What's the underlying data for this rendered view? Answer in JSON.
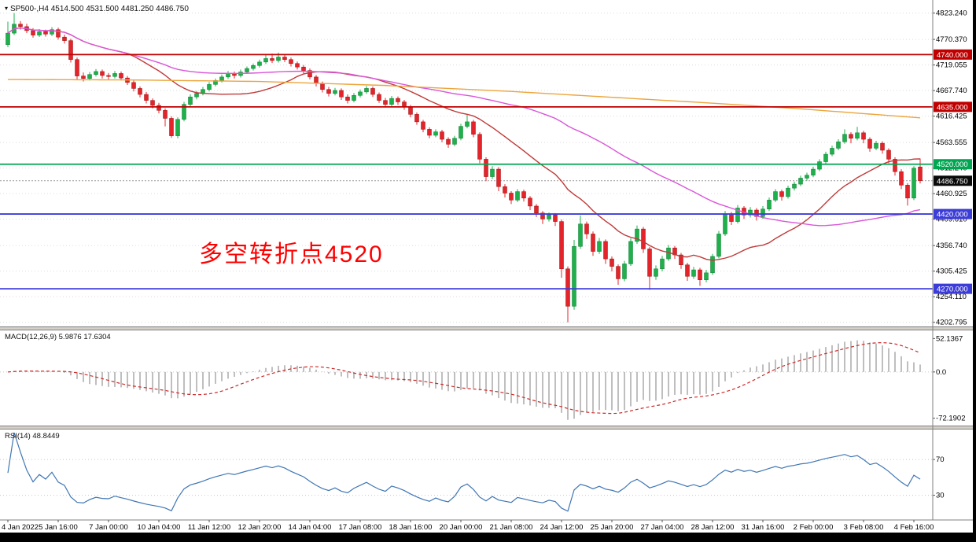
{
  "title": {
    "symbol_period": "SP500-,H4",
    "ohlc": "4514.500 4531.500 4481.250 4486.750",
    "dropdown_icon": "▾"
  },
  "annotation": {
    "text": "多空转折点4520",
    "color": "#fe0000"
  },
  "indicators": {
    "macd_label": "MACD(12,26,9)",
    "macd_values": "5.9876 17.6304",
    "rsi_label": "RSI(14)",
    "rsi_values": "48.8449"
  },
  "colors": {
    "bull": "#1eb14b",
    "bull_border": "#0e7a33",
    "bear": "#e3242b",
    "bear_border": "#9b1111",
    "ma_fast": "#c03a3a",
    "ma_medium": "#d957d9",
    "ma_slow": "#eca53c",
    "hline_red": "#c00000",
    "hline_green": "#00a651",
    "hline_blue": "#3c3cd9",
    "grid": "#dcdcdc",
    "axis_text": "#000000",
    "macd_hist": "#bfbfbf",
    "macd_signal": "#cc2a2a",
    "rsi_line": "#3f76b4",
    "current_line": "#9a9a9a",
    "current_badge_bg": "#0a0a0a"
  },
  "chart_data": [
    {
      "type": "candlestick",
      "symbol": "SP500-",
      "timeframe": "H4",
      "last_bar": {
        "open": 4514.5,
        "high": 4531.5,
        "low": 4481.25,
        "close": 4486.75
      },
      "y_axis_ticks": [
        4823.24,
        4770.37,
        4719.055,
        4667.74,
        4616.425,
        4563.555,
        4512.24,
        4460.925,
        4409.61,
        4356.74,
        4305.425,
        4254.11,
        4202.795
      ],
      "price_range": [
        4196,
        4840
      ],
      "hlines": [
        {
          "value": 4740.0,
          "label": "4740.000",
          "color_key": "hline_red"
        },
        {
          "value": 4635.0,
          "label": "4635.000",
          "color_key": "hline_red"
        },
        {
          "value": 4520.0,
          "label": "4520.000",
          "color_key": "hline_green"
        },
        {
          "value": 4420.0,
          "label": "4420.000",
          "color_key": "hline_blue"
        },
        {
          "value": 4270.0,
          "label": "4270.000",
          "color_key": "hline_blue"
        }
      ],
      "current_price": {
        "value": 4486.75,
        "label": "4486.750"
      },
      "x_axis_labels": [
        "4 Jan 2022",
        "5 Jan 16:00",
        "7 Jan 00:00",
        "10 Jan 04:00",
        "11 Jan 12:00",
        "12 Jan 20:00",
        "14 Jan 04:00",
        "17 Jan 08:00",
        "18 Jan 16:00",
        "20 Jan 00:00",
        "21 Jan 08:00",
        "24 Jan 12:00",
        "25 Jan 20:00",
        "27 Jan 04:00",
        "28 Jan 12:00",
        "31 Jan 16:00",
        "2 Feb 00:00",
        "3 Feb 08:00",
        "4 Feb 16:00"
      ],
      "label_every": 8,
      "moving_averages": [
        {
          "name": "fast",
          "type": "sma",
          "period": 20,
          "color_key": "ma_fast"
        },
        {
          "name": "medium",
          "type": "sma",
          "period": 55,
          "color_key": "ma_medium"
        },
        {
          "name": "slow",
          "color_key": "ma_slow",
          "points": [
            [
              0,
              4690
            ],
            [
              20,
              4689
            ],
            [
              40,
              4686
            ],
            [
              60,
              4678
            ],
            [
              80,
              4666
            ],
            [
              95,
              4655
            ],
            [
              110,
              4644
            ],
            [
              125,
              4632
            ],
            [
              145,
              4613
            ]
          ]
        }
      ],
      "candles": [
        [
          4760,
          4806,
          4755,
          4783
        ],
        [
          4783,
          4823.2,
          4779,
          4801
        ],
        [
          4801,
          4807,
          4790,
          4796
        ],
        [
          4796,
          4802,
          4783,
          4788
        ],
        [
          4788,
          4793,
          4774,
          4779
        ],
        [
          4779,
          4791,
          4775,
          4786
        ],
        [
          4786,
          4790,
          4776,
          4781
        ],
        [
          4781,
          4795,
          4777,
          4790
        ],
        [
          4790,
          4794,
          4770,
          4775
        ],
        [
          4775,
          4780,
          4762,
          4768
        ],
        [
          4768,
          4772,
          4724,
          4730
        ],
        [
          4730,
          4734,
          4690,
          4697
        ],
        [
          4697,
          4704,
          4686,
          4692
        ],
        [
          4692,
          4705,
          4688,
          4700
        ],
        [
          4700,
          4711,
          4696,
          4706
        ],
        [
          4706,
          4710,
          4692,
          4698
        ],
        [
          4698,
          4703,
          4690,
          4696
        ],
        [
          4696,
          4707,
          4692,
          4702
        ],
        [
          4702,
          4706,
          4688,
          4693
        ],
        [
          4693,
          4697,
          4679,
          4684
        ],
        [
          4684,
          4688,
          4666,
          4672
        ],
        [
          4672,
          4676,
          4654,
          4660
        ],
        [
          4660,
          4665,
          4642,
          4648
        ],
        [
          4648,
          4652,
          4632,
          4638
        ],
        [
          4638,
          4643,
          4622,
          4628
        ],
        [
          4628,
          4632,
          4596,
          4612
        ],
        [
          4612,
          4616,
          4573,
          4577
        ],
        [
          4577,
          4614,
          4572,
          4610
        ],
        [
          4610,
          4645,
          4606,
          4640
        ],
        [
          4640,
          4660,
          4636,
          4655
        ],
        [
          4655,
          4667,
          4650,
          4662
        ],
        [
          4662,
          4675,
          4658,
          4670
        ],
        [
          4670,
          4685,
          4666,
          4680
        ],
        [
          4680,
          4692,
          4676,
          4688
        ],
        [
          4688,
          4700,
          4684,
          4695
        ],
        [
          4695,
          4707,
          4691,
          4702
        ],
        [
          4702,
          4706,
          4692,
          4698
        ],
        [
          4698,
          4710,
          4694,
          4705
        ],
        [
          4705,
          4716,
          4701,
          4712
        ],
        [
          4712,
          4722,
          4708,
          4718
        ],
        [
          4718,
          4730,
          4714,
          4725
        ],
        [
          4725,
          4740,
          4721,
          4732
        ],
        [
          4732,
          4742,
          4723,
          4728
        ],
        [
          4728,
          4744,
          4724,
          4735
        ],
        [
          4735,
          4739,
          4725,
          4730
        ],
        [
          4730,
          4734,
          4716,
          4722
        ],
        [
          4722,
          4726,
          4710,
          4715
        ],
        [
          4715,
          4719,
          4702,
          4708
        ],
        [
          4708,
          4712,
          4690,
          4695
        ],
        [
          4695,
          4699,
          4676,
          4682
        ],
        [
          4682,
          4686,
          4664,
          4670
        ],
        [
          4670,
          4675,
          4656,
          4662
        ],
        [
          4662,
          4673,
          4658,
          4668
        ],
        [
          4668,
          4672,
          4649,
          4655
        ],
        [
          4655,
          4660,
          4642,
          4648
        ],
        [
          4648,
          4663,
          4644,
          4658
        ],
        [
          4658,
          4670,
          4654,
          4665
        ],
        [
          4665,
          4677,
          4661,
          4672
        ],
        [
          4672,
          4676,
          4655,
          4660
        ],
        [
          4660,
          4664,
          4643,
          4648
        ],
        [
          4648,
          4653,
          4634,
          4640
        ],
        [
          4640,
          4657,
          4636,
          4652
        ],
        [
          4652,
          4656,
          4639,
          4645
        ],
        [
          4645,
          4649,
          4629,
          4635
        ],
        [
          4635,
          4639,
          4614,
          4620
        ],
        [
          4620,
          4624,
          4599,
          4605
        ],
        [
          4605,
          4609,
          4584,
          4590
        ],
        [
          4590,
          4594,
          4572,
          4578
        ],
        [
          4578,
          4590,
          4574,
          4585
        ],
        [
          4585,
          4589,
          4564,
          4570
        ],
        [
          4570,
          4574,
          4553,
          4560
        ],
        [
          4560,
          4577,
          4556,
          4572
        ],
        [
          4572,
          4601,
          4568,
          4596
        ],
        [
          4596,
          4620,
          4592,
          4605
        ],
        [
          4605,
          4609,
          4574,
          4580
        ],
        [
          4580,
          4584,
          4522,
          4530
        ],
        [
          4530,
          4534,
          4486,
          4495
        ],
        [
          4495,
          4516,
          4490,
          4510
        ],
        [
          4510,
          4514,
          4466,
          4475
        ],
        [
          4475,
          4480,
          4453,
          4462
        ],
        [
          4462,
          4466,
          4440,
          4448
        ],
        [
          4448,
          4470,
          4444,
          4465
        ],
        [
          4465,
          4469,
          4445,
          4452
        ],
        [
          4452,
          4456,
          4428,
          4436
        ],
        [
          4436,
          4440,
          4414,
          4422
        ],
        [
          4422,
          4426,
          4400,
          4410
        ],
        [
          4410,
          4423,
          4405,
          4418
        ],
        [
          4418,
          4422,
          4396,
          4405
        ],
        [
          4405,
          4409,
          4292,
          4310
        ],
        [
          4310,
          4315,
          4202.8,
          4235
        ],
        [
          4235,
          4368,
          4228,
          4355
        ],
        [
          4355,
          4417,
          4350,
          4400
        ],
        [
          4400,
          4405,
          4370,
          4380
        ],
        [
          4380,
          4385,
          4336,
          4345
        ],
        [
          4345,
          4372,
          4340,
          4365
        ],
        [
          4365,
          4369,
          4320,
          4330
        ],
        [
          4330,
          4335,
          4305,
          4315
        ],
        [
          4315,
          4319,
          4278,
          4290
        ],
        [
          4290,
          4326,
          4285,
          4320
        ],
        [
          4320,
          4371,
          4316,
          4365
        ],
        [
          4365,
          4397,
          4360,
          4390
        ],
        [
          4390,
          4394,
          4342,
          4350
        ],
        [
          4350,
          4354,
          4268,
          4295
        ],
        [
          4295,
          4317,
          4288,
          4310
        ],
        [
          4310,
          4336,
          4305,
          4330
        ],
        [
          4330,
          4358,
          4326,
          4352
        ],
        [
          4352,
          4356,
          4330,
          4338
        ],
        [
          4338,
          4342,
          4310,
          4318
        ],
        [
          4318,
          4322,
          4286,
          4295
        ],
        [
          4295,
          4314,
          4290,
          4308
        ],
        [
          4308,
          4312,
          4276,
          4288
        ],
        [
          4288,
          4308,
          4283,
          4302
        ],
        [
          4302,
          4340,
          4298,
          4335
        ],
        [
          4335,
          4386,
          4331,
          4380
        ],
        [
          4380,
          4426,
          4376,
          4420
        ],
        [
          4420,
          4424,
          4398,
          4405
        ],
        [
          4405,
          4438,
          4401,
          4432
        ],
        [
          4432,
          4436,
          4410,
          4418
        ],
        [
          4418,
          4434,
          4413,
          4428
        ],
        [
          4428,
          4432,
          4407,
          4415
        ],
        [
          4415,
          4436,
          4410,
          4430
        ],
        [
          4430,
          4453,
          4426,
          4448
        ],
        [
          4448,
          4470,
          4444,
          4465
        ],
        [
          4465,
          4469,
          4447,
          4455
        ],
        [
          4455,
          4477,
          4451,
          4472
        ],
        [
          4472,
          4485,
          4467,
          4480
        ],
        [
          4480,
          4497,
          4476,
          4492
        ],
        [
          4492,
          4503,
          4487,
          4498
        ],
        [
          4498,
          4515,
          4494,
          4510
        ],
        [
          4510,
          4530,
          4506,
          4525
        ],
        [
          4525,
          4545,
          4521,
          4540
        ],
        [
          4540,
          4557,
          4536,
          4552
        ],
        [
          4552,
          4570,
          4548,
          4565
        ],
        [
          4565,
          4590,
          4561,
          4580
        ],
        [
          4580,
          4584,
          4562,
          4572
        ],
        [
          4572,
          4595,
          4568,
          4583
        ],
        [
          4583,
          4587,
          4562,
          4570
        ],
        [
          4570,
          4574,
          4545,
          4552
        ],
        [
          4552,
          4567,
          4548,
          4562
        ],
        [
          4562,
          4566,
          4541,
          4548
        ],
        [
          4548,
          4552,
          4522,
          4530
        ],
        [
          4530,
          4534,
          4497,
          4505
        ],
        [
          4505,
          4510,
          4470,
          4478
        ],
        [
          4478,
          4482,
          4437,
          4452
        ],
        [
          4452,
          4516,
          4448,
          4512
        ],
        [
          4514.5,
          4531.5,
          4481.25,
          4486.75
        ]
      ]
    },
    {
      "type": "macd-histogram",
      "params": [
        12,
        26,
        9
      ],
      "current_macd": 5.9876,
      "current_signal": 17.6304,
      "y_ticks": [
        {
          "value": 52.1367,
          "label": "52.1367"
        },
        {
          "value": 0,
          "label": "0.0"
        },
        {
          "value": -72.1902,
          "label": "-72.1902"
        }
      ],
      "range": [
        60,
        -80
      ]
    },
    {
      "type": "line",
      "name": "RSI",
      "period": 14,
      "current": 48.8449,
      "levels": [
        {
          "value": 70,
          "label": "70"
        },
        {
          "value": 30,
          "label": "30"
        }
      ],
      "range": [
        100,
        5
      ]
    }
  ]
}
